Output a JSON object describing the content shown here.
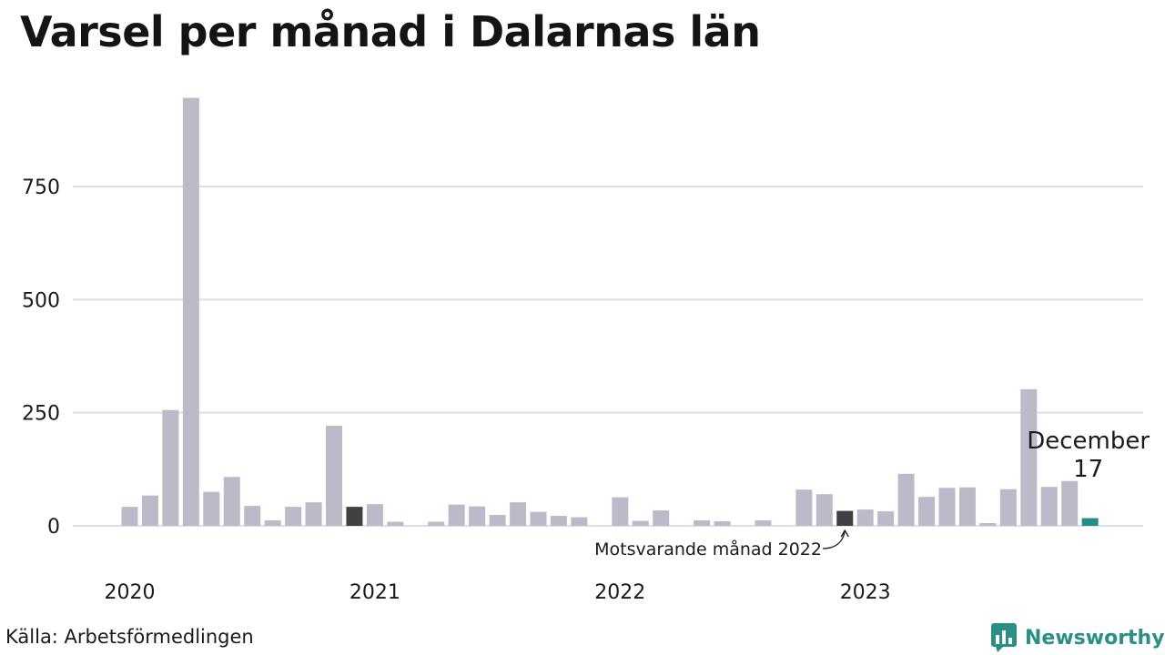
{
  "title": "Varsel per månad i Dalarnas län",
  "source": "Källa: Arbetsförmedlingen",
  "brand": {
    "name": "Newsworthy",
    "icon": "newsworthy-logo-icon"
  },
  "colors": {
    "bar": "#bcbac8",
    "highlight": "#404040",
    "current": "#1f8f88",
    "grid": "#dedde3",
    "brand": "#2a8f86"
  },
  "chart_data": {
    "type": "bar",
    "title": "Varsel per månad i Dalarnas län",
    "xlabel": "",
    "ylabel": "",
    "ylim": [
      0,
      950
    ],
    "yticks": [
      0,
      250,
      500,
      750
    ],
    "grid": true,
    "categories": [
      "2020-01",
      "2020-02",
      "2020-03",
      "2020-04",
      "2020-05",
      "2020-06",
      "2020-07",
      "2020-08",
      "2020-09",
      "2020-10",
      "2020-11",
      "2020-12",
      "2021-01",
      "2021-02",
      "2021-03",
      "2021-04",
      "2021-05",
      "2021-06",
      "2021-07",
      "2021-08",
      "2021-09",
      "2021-10",
      "2021-11",
      "2021-12",
      "2022-01",
      "2022-02",
      "2022-03",
      "2022-04",
      "2022-05",
      "2022-06",
      "2022-07",
      "2022-08",
      "2022-09",
      "2022-10",
      "2022-11",
      "2022-12",
      "2023-01",
      "2023-02",
      "2023-03",
      "2023-04",
      "2023-05",
      "2023-06",
      "2023-07",
      "2023-08",
      "2023-09",
      "2023-10",
      "2023-11",
      "2023-12"
    ],
    "values": [
      42,
      67,
      256,
      946,
      75,
      108,
      44,
      12,
      42,
      52,
      221,
      42,
      48,
      9,
      0,
      9,
      47,
      43,
      24,
      52,
      31,
      22,
      19,
      0,
      63,
      11,
      34,
      0,
      12,
      10,
      0,
      12,
      0,
      80,
      70,
      33,
      36,
      32,
      115,
      64,
      84,
      85,
      6,
      81,
      302,
      86,
      99,
      17
    ],
    "year_labels": [
      "2020",
      "2021",
      "2022",
      "2023"
    ],
    "highlight_indices": [
      11,
      35
    ],
    "current_index": 47,
    "annotations": [
      {
        "text": "Motsvarande månad 2022",
        "index": 35
      },
      {
        "text": "December",
        "index": 47
      },
      {
        "text": "17",
        "index": 47
      }
    ]
  }
}
